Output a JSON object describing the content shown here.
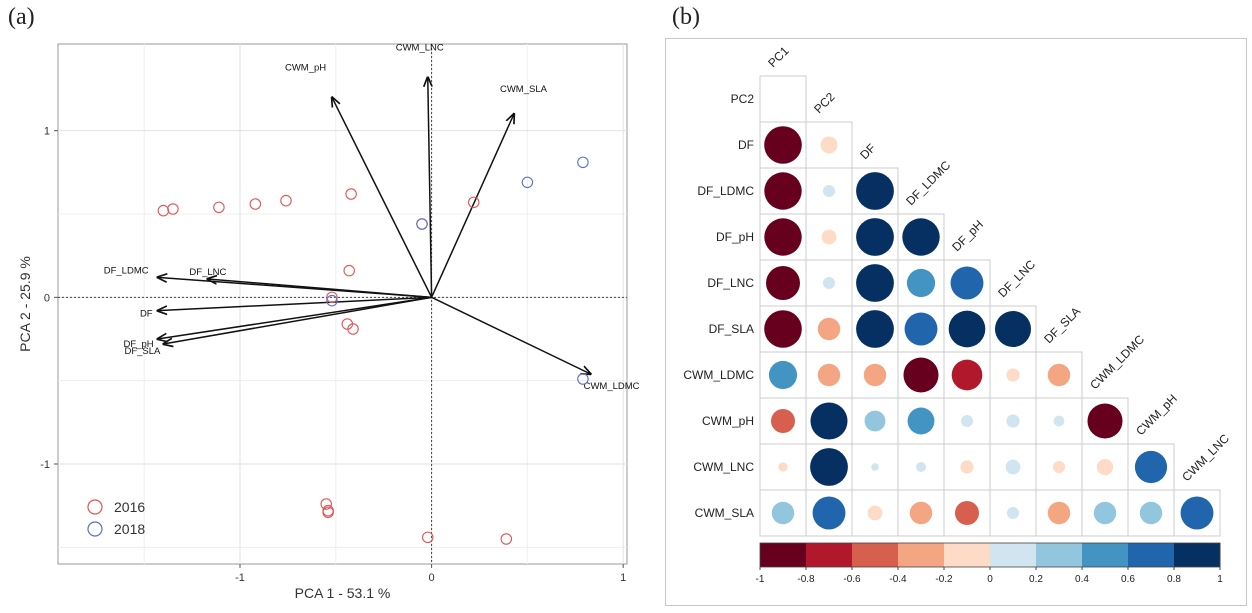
{
  "panel_labels": {
    "a": "(a)",
    "b": "(b)"
  },
  "chart_data": [
    {
      "type": "scatter",
      "panel": "(a)",
      "xlabel": "PCA 1 - 53.1 %",
      "ylabel": "PCA 2 - 25.9 %",
      "xlim": [
        -1.95,
        1.02
      ],
      "ylim": [
        -1.6,
        1.52
      ],
      "xticks": [
        -1,
        0,
        1
      ],
      "yticks": [
        -1,
        0,
        1
      ],
      "grid": true,
      "legend_position": "bottom-left",
      "legend": [
        {
          "name": "2016",
          "color": "#e05555"
        },
        {
          "name": "2018",
          "color": "#5a6fd0"
        }
      ],
      "series": [
        {
          "name": "2016",
          "color": "#e05555",
          "points": [
            [
              -1.4,
              0.52
            ],
            [
              -1.35,
              0.53
            ],
            [
              -1.11,
              0.54
            ],
            [
              -0.92,
              0.56
            ],
            [
              -0.76,
              0.58
            ],
            [
              -0.42,
              0.62
            ],
            [
              -0.43,
              0.16
            ],
            [
              -0.52,
              0.0
            ],
            [
              -0.44,
              -0.16
            ],
            [
              -0.41,
              -0.19
            ],
            [
              -0.55,
              -1.24
            ],
            [
              -0.54,
              -1.28
            ],
            [
              -0.54,
              -1.29
            ],
            [
              -0.02,
              -1.44
            ],
            [
              0.39,
              -1.45
            ],
            [
              -0.05,
              0.44
            ],
            [
              0.22,
              0.57
            ]
          ]
        },
        {
          "name": "2018",
          "color": "#5a6fd0",
          "points": [
            [
              -0.05,
              0.44
            ],
            [
              0.5,
              0.69
            ],
            [
              0.79,
              0.81
            ],
            [
              -0.52,
              -0.02
            ],
            [
              0.79,
              -0.49
            ]
          ]
        }
      ],
      "loadings": [
        {
          "label": "CWM_LNC",
          "x": -0.02,
          "y": 1.32
        },
        {
          "label": "CWM_pH",
          "x": -0.52,
          "y": 1.2
        },
        {
          "label": "CWM_SLA",
          "x": 0.43,
          "y": 1.1
        },
        {
          "label": "DF_LDMC",
          "x": -1.43,
          "y": 0.12
        },
        {
          "label": "DF_LNC",
          "x": -1.17,
          "y": 0.11
        },
        {
          "label": "DF",
          "x": -1.43,
          "y": -0.08
        },
        {
          "label": "DF_pH",
          "x": -1.43,
          "y": -0.25
        },
        {
          "label": "DF_SLA",
          "x": -1.4,
          "y": -0.28
        },
        {
          "label": "CWM_LDMC",
          "x": 0.83,
          "y": -0.46
        }
      ]
    },
    {
      "type": "heatmap",
      "panel": "(b)",
      "variables": [
        "PC1",
        "PC2",
        "DF",
        "DF_LDMC",
        "DF_pH",
        "DF_LNC",
        "DF_SLA",
        "CWM_LDMC",
        "CWM_pH",
        "CWM_LNC",
        "CWM_SLA"
      ],
      "row_labels": [
        "PC2",
        "DF",
        "DF_LDMC",
        "DF_pH",
        "DF_LNC",
        "DF_SLA",
        "CWM_LDMC",
        "CWM_pH",
        "CWM_LNC",
        "CWM_SLA"
      ],
      "column_labels": [
        "PC1",
        "PC2",
        "DF",
        "DF_LDMC",
        "DF_pH",
        "DF_LNC",
        "DF_SLA",
        "CWM_LDMC",
        "CWM_pH",
        "CWM_LNC"
      ],
      "values": [
        [
          0.0
        ],
        [
          -0.98,
          -0.2
        ],
        [
          -0.97,
          0.1,
          0.99
        ],
        [
          -0.97,
          -0.15,
          0.99,
          0.97
        ],
        [
          -0.8,
          0.1,
          0.99,
          0.55,
          0.75
        ],
        [
          -0.98,
          -0.35,
          0.99,
          0.75,
          0.93,
          0.9
        ],
        [
          0.55,
          -0.35,
          -0.35,
          -0.85,
          -0.65,
          -0.12,
          -0.35
        ],
        [
          -0.4,
          0.95,
          0.3,
          0.5,
          0.1,
          0.12,
          0.08,
          -0.85
        ],
        [
          -0.06,
          0.99,
          0.04,
          0.07,
          -0.12,
          0.15,
          -0.1,
          -0.18,
          0.72
        ],
        [
          0.35,
          0.75,
          -0.15,
          -0.35,
          -0.4,
          0.1,
          -0.35,
          0.35,
          0.35,
          0.75
        ]
      ],
      "colorbar": {
        "ticks": [
          -1,
          -0.8,
          -0.6,
          -0.4,
          -0.2,
          0,
          0.2,
          0.4,
          0.6,
          0.8,
          1
        ]
      },
      "colors": [
        "#67001f",
        "#b2182b",
        "#d6604d",
        "#f4a582",
        "#fddbc7",
        "#d1e5f0",
        "#92c5de",
        "#4393c3",
        "#2166ac",
        "#053061"
      ]
    }
  ]
}
